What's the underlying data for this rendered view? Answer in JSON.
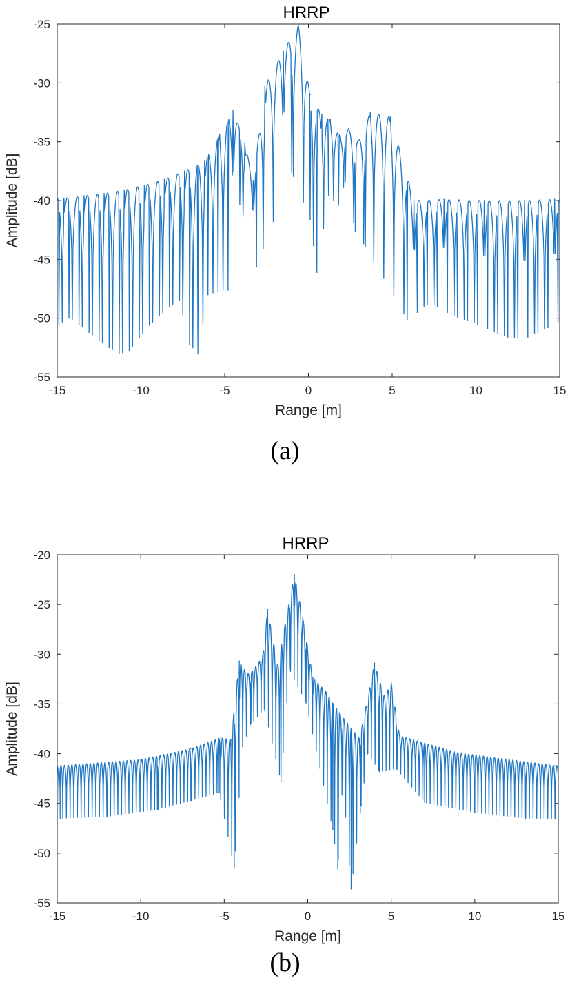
{
  "chart_data": [
    {
      "type": "line",
      "title": "HRRP",
      "xlabel": "Range [m]",
      "ylabel": "Amplitude [dB]",
      "xlim": [
        -15,
        15
      ],
      "ylim": [
        -55,
        -25
      ],
      "xticks": [
        -15,
        -10,
        -5,
        0,
        5,
        10,
        15
      ],
      "yticks": [
        -55,
        -50,
        -45,
        -40,
        -35,
        -30,
        -25
      ],
      "caption": "(a)",
      "color": "#1f77c4",
      "grid": false,
      "series": [
        {
          "lobe_spacing_m": 0.6,
          "peaks": [
            {
              "x": -14.6,
              "y": -39.8
            },
            {
              "x": -13.4,
              "y": -39.6
            },
            {
              "x": -12.2,
              "y": -39.4
            },
            {
              "x": -11.0,
              "y": -39.1
            },
            {
              "x": -9.8,
              "y": -38.7
            },
            {
              "x": -8.6,
              "y": -38.2
            },
            {
              "x": -7.4,
              "y": -37.5
            },
            {
              "x": -6.2,
              "y": -36.6
            },
            {
              "x": -5.3,
              "y": -34.4
            },
            {
              "x": -4.5,
              "y": -32.3
            },
            {
              "x": -3.8,
              "y": -35.1
            },
            {
              "x": -3.3,
              "y": -38.3
            },
            {
              "x": -2.6,
              "y": -30.3
            },
            {
              "x": -1.5,
              "y": -27.3
            },
            {
              "x": -0.6,
              "y": -25.1
            },
            {
              "x": 0.1,
              "y": -31.0
            },
            {
              "x": 0.8,
              "y": -32.7
            },
            {
              "x": 1.3,
              "y": -33.1
            },
            {
              "x": 1.9,
              "y": -34.5
            },
            {
              "x": 2.4,
              "y": -33.9
            },
            {
              "x": 3.0,
              "y": -34.9
            },
            {
              "x": 3.7,
              "y": -32.5
            },
            {
              "x": 4.9,
              "y": -32.9
            },
            {
              "x": 6.3,
              "y": -40.0
            },
            {
              "x": 8.1,
              "y": -39.9
            },
            {
              "x": 10.5,
              "y": -40.0
            },
            {
              "x": 12.9,
              "y": -40.0
            },
            {
              "x": 14.7,
              "y": -39.9
            }
          ],
          "nulls": [
            {
              "x": -14.9,
              "y": -50.5
            },
            {
              "x": -14.3,
              "y": -50.0
            },
            {
              "x": -13.7,
              "y": -50.5
            },
            {
              "x": -13.1,
              "y": -51.2
            },
            {
              "x": -12.5,
              "y": -51.9
            },
            {
              "x": -11.9,
              "y": -52.5
            },
            {
              "x": -11.3,
              "y": -53.0
            },
            {
              "x": -10.7,
              "y": -52.8
            },
            {
              "x": -10.1,
              "y": -51.6
            },
            {
              "x": -9.5,
              "y": -50.6
            },
            {
              "x": -8.9,
              "y": -49.8
            },
            {
              "x": -8.3,
              "y": -49.0
            },
            {
              "x": -7.7,
              "y": -48.5
            },
            {
              "x": -7.1,
              "y": -52.2
            },
            {
              "x": -6.6,
              "y": -53.0
            },
            {
              "x": -6.0,
              "y": -48.0
            },
            {
              "x": -5.4,
              "y": -47.7
            },
            {
              "x": -4.8,
              "y": -47.6
            },
            {
              "x": -4.1,
              "y": -40.3
            },
            {
              "x": -3.1,
              "y": -45.6
            },
            {
              "x": -1.0,
              "y": -37.6
            },
            {
              "x": 0.1,
              "y": -41.6
            },
            {
              "x": 0.5,
              "y": -46.1
            },
            {
              "x": 1.2,
              "y": -39.6
            },
            {
              "x": 1.8,
              "y": -40.4
            },
            {
              "x": 2.2,
              "y": -38.4
            },
            {
              "x": 2.8,
              "y": -42.6
            },
            {
              "x": 3.4,
              "y": -43.9
            },
            {
              "x": 5.9,
              "y": -50.1
            },
            {
              "x": 6.5,
              "y": -49.5
            },
            {
              "x": 7.1,
              "y": -48.8
            },
            {
              "x": 7.7,
              "y": -49.0
            },
            {
              "x": 8.3,
              "y": -49.5
            },
            {
              "x": 8.9,
              "y": -49.9
            },
            {
              "x": 9.5,
              "y": -50.2
            },
            {
              "x": 10.1,
              "y": -50.5
            },
            {
              "x": 10.7,
              "y": -50.9
            },
            {
              "x": 11.3,
              "y": -51.3
            },
            {
              "x": 11.9,
              "y": -51.6
            },
            {
              "x": 12.5,
              "y": -51.7
            },
            {
              "x": 13.1,
              "y": -51.6
            },
            {
              "x": 13.7,
              "y": -51.2
            },
            {
              "x": 14.3,
              "y": -50.8
            },
            {
              "x": 14.9,
              "y": -50.3
            }
          ]
        }
      ]
    },
    {
      "type": "line",
      "title": "HRRP",
      "xlabel": "Range [m]",
      "ylabel": "Amplitude [dB]",
      "xlim": [
        -15,
        15
      ],
      "ylim": [
        -55,
        -20
      ],
      "xticks": [
        -15,
        -10,
        -5,
        0,
        5,
        10,
        15
      ],
      "yticks": [
        -55,
        -50,
        -45,
        -40,
        -35,
        -30,
        -25,
        -20
      ],
      "caption": "(b)",
      "color": "#1f77c4",
      "grid": false,
      "series": [
        {
          "lobe_spacing_m": 0.22,
          "peaks": [
            {
              "x": -14.8,
              "y": -41.2
            },
            {
              "x": -10.0,
              "y": -40.6
            },
            {
              "x": -7.0,
              "y": -39.5
            },
            {
              "x": -5.2,
              "y": -38.4
            },
            {
              "x": -4.6,
              "y": -38.6
            },
            {
              "x": -4.1,
              "y": -30.7
            },
            {
              "x": -3.6,
              "y": -32.0
            },
            {
              "x": -3.3,
              "y": -31.7
            },
            {
              "x": -2.7,
              "y": -30.2
            },
            {
              "x": -2.4,
              "y": -25.5
            },
            {
              "x": -1.8,
              "y": -31.1
            },
            {
              "x": -1.4,
              "y": -27.4
            },
            {
              "x": -0.8,
              "y": -22.0
            },
            {
              "x": -0.3,
              "y": -26.3
            },
            {
              "x": 0.3,
              "y": -32.3
            },
            {
              "x": 1.1,
              "y": -33.8
            },
            {
              "x": 1.9,
              "y": -35.9
            },
            {
              "x": 3.1,
              "y": -38.5
            },
            {
              "x": 4.0,
              "y": -30.9
            },
            {
              "x": 4.6,
              "y": -34.3
            },
            {
              "x": 5.0,
              "y": -32.9
            },
            {
              "x": 5.5,
              "y": -38.2
            },
            {
              "x": 9.0,
              "y": -39.9
            },
            {
              "x": 14.8,
              "y": -41.2
            }
          ],
          "nulls": [
            {
              "x": -14.8,
              "y": -46.5
            },
            {
              "x": -12.0,
              "y": -46.3
            },
            {
              "x": -9.0,
              "y": -45.6
            },
            {
              "x": -7.0,
              "y": -44.7
            },
            {
              "x": -5.3,
              "y": -43.9
            },
            {
              "x": -4.4,
              "y": -51.5
            },
            {
              "x": -3.9,
              "y": -39.3
            },
            {
              "x": -3.4,
              "y": -37.0
            },
            {
              "x": -2.6,
              "y": -35.5
            },
            {
              "x": -1.6,
              "y": -42.8
            },
            {
              "x": -1.1,
              "y": -31.5
            },
            {
              "x": -0.1,
              "y": -34.9
            },
            {
              "x": 1.5,
              "y": -47.6
            },
            {
              "x": 1.8,
              "y": -51.6
            },
            {
              "x": 2.1,
              "y": -42.7
            },
            {
              "x": 2.6,
              "y": -53.6
            },
            {
              "x": 3.2,
              "y": -45.2
            },
            {
              "x": 3.6,
              "y": -39.9
            },
            {
              "x": 4.3,
              "y": -41.8
            },
            {
              "x": 5.3,
              "y": -41.5
            },
            {
              "x": 7.0,
              "y": -44.9
            },
            {
              "x": 10.0,
              "y": -45.9
            },
            {
              "x": 13.0,
              "y": -46.5
            },
            {
              "x": 14.8,
              "y": -46.5
            }
          ]
        }
      ]
    }
  ]
}
